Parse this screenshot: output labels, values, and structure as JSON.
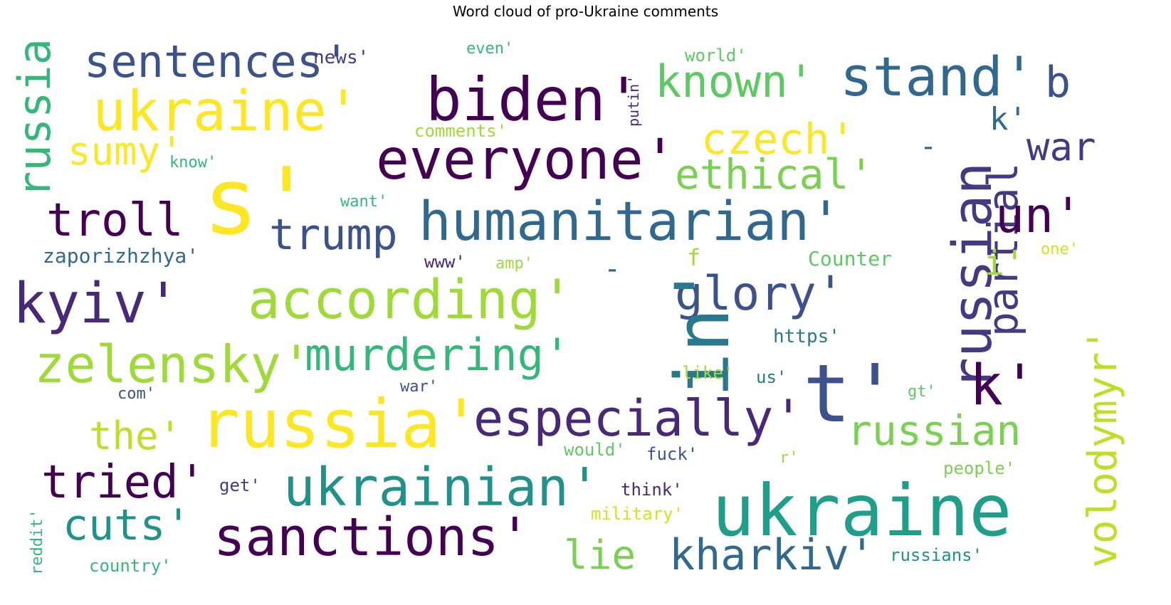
{
  "title": "Word cloud of pro-Ukraine comments",
  "words": [
    {
      "text": "sentences'",
      "color": "#3b528b"
    },
    {
      "text": "news'",
      "color": "#443a83"
    },
    {
      "text": "even'",
      "color": "#35b779"
    },
    {
      "text": "world'",
      "color": "#5ec962"
    },
    {
      "text": "putin'",
      "color": "#482878"
    },
    {
      "text": "stand'",
      "color": "#31688e"
    },
    {
      "text": "b",
      "color": "#3b528b"
    },
    {
      "text": "russia",
      "color": "#35b779"
    },
    {
      "text": "ukraine'",
      "color": "#fde725"
    },
    {
      "text": "biden'",
      "color": "#440154"
    },
    {
      "text": "known'",
      "color": "#5ec962"
    },
    {
      "text": "k'",
      "color": "#31688e"
    },
    {
      "text": "comments'",
      "color": "#a0da39"
    },
    {
      "text": "sumy'",
      "color": "#fde725"
    },
    {
      "text": "czech'",
      "color": "#fde725"
    },
    {
      "text": "-",
      "color": "#31688e"
    },
    {
      "text": "war",
      "color": "#443a83"
    },
    {
      "text": "know'",
      "color": "#35b779"
    },
    {
      "text": "s'",
      "color": "#fde725"
    },
    {
      "text": "everyone'",
      "color": "#440154"
    },
    {
      "text": "ethical'",
      "color": "#7ad151"
    },
    {
      "text": "russian",
      "color": "#443a83"
    },
    {
      "text": "partial",
      "color": "#443a83"
    },
    {
      "text": "want'",
      "color": "#35b779"
    },
    {
      "text": "troll",
      "color": "#440154"
    },
    {
      "text": "trump",
      "color": "#3b528b"
    },
    {
      "text": "humanitarian'",
      "color": "#31688e"
    },
    {
      "text": "un'",
      "color": "#440154"
    },
    {
      "text": "zaporizhzhya'",
      "color": "#31688e"
    },
    {
      "text": "www'",
      "color": "#482878"
    },
    {
      "text": "amp'",
      "color": "#a0da39"
    },
    {
      "text": "f",
      "color": "#a0da39"
    },
    {
      "text": "Counter",
      "color": "#5ec962"
    },
    {
      "text": "one'",
      "color": "#d2e21b"
    },
    {
      "text": "i'",
      "color": "#a0da39"
    },
    {
      "text": "kyiv'",
      "color": "#482878"
    },
    {
      "text": "according'",
      "color": "#a0da39"
    },
    {
      "text": "-",
      "color": "#31688e"
    },
    {
      "text": "glory'",
      "color": "#3b528b"
    },
    {
      "text": "volodymyr'",
      "color": "#bddf26"
    },
    {
      "text": "in'",
      "color": "#2a788e"
    },
    {
      "text": "https'",
      "color": "#2a788e"
    },
    {
      "text": "zelensky'",
      "color": "#a0da39"
    },
    {
      "text": "murdering'",
      "color": "#35b779"
    },
    {
      "text": "like'",
      "color": "#a0da39"
    },
    {
      "text": "us'",
      "color": "#2a788e"
    },
    {
      "text": "t'",
      "color": "#3b528b"
    },
    {
      "text": "k'",
      "color": "#440154"
    },
    {
      "text": "com'",
      "color": "#3b528b"
    },
    {
      "text": "war'",
      "color": "#3b528b"
    },
    {
      "text": "gt'",
      "color": "#5ec962"
    },
    {
      "text": "the'",
      "color": "#bddf26"
    },
    {
      "text": "russia'",
      "color": "#fde725"
    },
    {
      "text": "especially'",
      "color": "#482878"
    },
    {
      "text": "russian",
      "color": "#7ad151"
    },
    {
      "text": "would'",
      "color": "#5ec962"
    },
    {
      "text": "fuck'",
      "color": "#3b528b"
    },
    {
      "text": "r'",
      "color": "#a0da39"
    },
    {
      "text": "people'",
      "color": "#7ad151"
    },
    {
      "text": "tried'",
      "color": "#440154"
    },
    {
      "text": "get'",
      "color": "#443a83"
    },
    {
      "text": "ukrainian'",
      "color": "#21918c"
    },
    {
      "text": "think'",
      "color": "#482878"
    },
    {
      "text": "ukraine",
      "color": "#1f9e89"
    },
    {
      "text": "reddit'",
      "color": "#35b779"
    },
    {
      "text": "cuts'",
      "color": "#21918c"
    },
    {
      "text": "sanctions'",
      "color": "#440154"
    },
    {
      "text": "military'",
      "color": "#d2e21b"
    },
    {
      "text": "lie",
      "color": "#7ad151"
    },
    {
      "text": "kharkiv'",
      "color": "#31688e"
    },
    {
      "text": "russians'",
      "color": "#21918c"
    },
    {
      "text": "country'",
      "color": "#35b779"
    }
  ]
}
